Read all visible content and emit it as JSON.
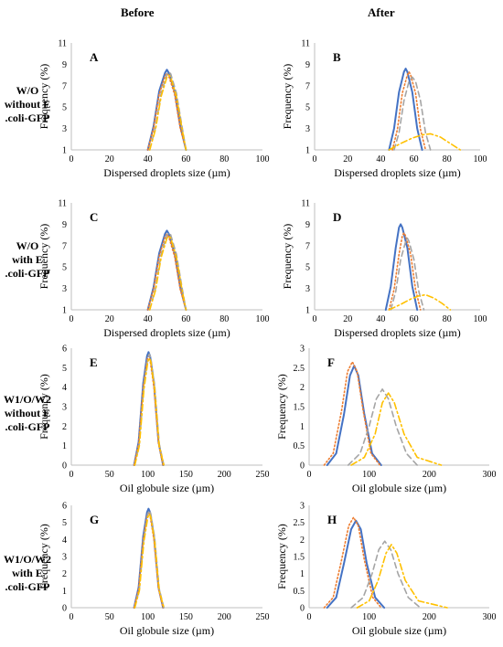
{
  "columns": {
    "before": "Before",
    "after": "After"
  },
  "rows": [
    {
      "l1": "W/O",
      "l2": "without E",
      "l3": ".coli-GFP"
    },
    {
      "l1": "W/O",
      "l2": "with E",
      "l3": ".coli-GFP"
    },
    {
      "l1": "W1/O/W2",
      "l2": "without E",
      "l3": ".coli-GFP"
    },
    {
      "l1": "W1/O/W2",
      "l2": "with E",
      "l3": ".coli-GFP"
    }
  ],
  "colors": {
    "solid": "#4472C4",
    "dotted": "#ED7D31",
    "dashed": "#A5A5A5",
    "dashdot": "#FFC000"
  },
  "chart_data": [
    {
      "panel": "A",
      "type": "line",
      "xlabel": "Dispersed droplets size (µm)",
      "ylabel": "Frequency (%)",
      "xlim": [
        0,
        100
      ],
      "ylim": [
        1,
        11
      ],
      "xticks": [
        0,
        20,
        40,
        60,
        80,
        100
      ],
      "yticks": [
        1,
        3,
        5,
        7,
        9,
        11
      ],
      "series": [
        {
          "style": "solid",
          "x": [
            40,
            43,
            46,
            49,
            50,
            51,
            54,
            57,
            60
          ],
          "y": [
            1,
            3.2,
            6.5,
            8.2,
            8.5,
            8.2,
            6.5,
            3.2,
            1
          ]
        },
        {
          "style": "dotted",
          "x": [
            40,
            43,
            46,
            49,
            50,
            51,
            54,
            57,
            60
          ],
          "y": [
            1,
            3.0,
            6.2,
            7.9,
            8.2,
            7.9,
            6.2,
            3.0,
            1
          ]
        },
        {
          "style": "dashed",
          "x": [
            41,
            44,
            47,
            50,
            51,
            52,
            55,
            58,
            60
          ],
          "y": [
            1,
            3.1,
            6.3,
            8.1,
            8.3,
            8.1,
            6.3,
            3.1,
            1
          ]
        },
        {
          "style": "dashdot",
          "x": [
            41,
            44,
            47,
            50,
            51,
            52,
            55,
            58,
            60
          ],
          "y": [
            1,
            2.9,
            6.0,
            7.8,
            8.0,
            7.8,
            6.0,
            2.9,
            1
          ]
        }
      ]
    },
    {
      "panel": "B",
      "type": "line",
      "xlabel": "Dispersed droplets size (µm)",
      "ylabel": "Frequency (%)",
      "xlim": [
        0,
        100
      ],
      "ylim": [
        1,
        11
      ],
      "xticks": [
        0,
        20,
        40,
        60,
        80,
        100
      ],
      "yticks": [
        1,
        3,
        5,
        7,
        9,
        11
      ],
      "series": [
        {
          "style": "solid",
          "x": [
            45,
            48,
            51,
            54,
            55,
            56,
            59,
            62,
            65
          ],
          "y": [
            1,
            3.0,
            6.4,
            8.3,
            8.6,
            8.3,
            6.4,
            3.0,
            1
          ]
        },
        {
          "style": "dotted",
          "x": [
            47,
            50,
            53,
            56,
            57,
            58,
            61,
            64,
            67
          ],
          "y": [
            1,
            2.9,
            6.3,
            8.0,
            8.3,
            8.0,
            6.3,
            2.9,
            1
          ]
        },
        {
          "style": "dashed",
          "x": [
            48,
            51,
            54,
            57,
            59,
            61,
            64,
            67,
            70
          ],
          "y": [
            1,
            2.6,
            5.6,
            7.4,
            7.8,
            7.4,
            5.6,
            2.6,
            1
          ]
        },
        {
          "style": "dashdot",
          "x": [
            45,
            52,
            59,
            65,
            70,
            76,
            82,
            88
          ],
          "y": [
            1,
            1.6,
            2.1,
            2.4,
            2.5,
            2.2,
            1.6,
            1
          ]
        }
      ]
    },
    {
      "panel": "C",
      "type": "line",
      "xlabel": "Dispersed droplets size (µm)",
      "ylabel": "Frequency (%)",
      "xlim": [
        0,
        100
      ],
      "ylim": [
        1,
        11
      ],
      "xticks": [
        0,
        20,
        40,
        60,
        80,
        100
      ],
      "yticks": [
        1,
        3,
        5,
        7,
        9,
        11
      ],
      "series": [
        {
          "style": "solid",
          "x": [
            40,
            43,
            46,
            49,
            50,
            51,
            54,
            57,
            60
          ],
          "y": [
            1,
            3.1,
            6.3,
            8.1,
            8.4,
            8.1,
            6.3,
            3.1,
            1
          ]
        },
        {
          "style": "dotted",
          "x": [
            40,
            43,
            46,
            49,
            50,
            51,
            54,
            57,
            60
          ],
          "y": [
            1,
            2.9,
            6.0,
            7.8,
            8.1,
            7.8,
            6.0,
            2.9,
            1
          ]
        },
        {
          "style": "dashed",
          "x": [
            41,
            44,
            47,
            50,
            51,
            52,
            55,
            58,
            60
          ],
          "y": [
            1,
            3.0,
            6.2,
            8.0,
            8.2,
            8.0,
            6.2,
            3.0,
            1
          ]
        },
        {
          "style": "dashdot",
          "x": [
            41,
            44,
            47,
            50,
            51,
            52,
            55,
            58,
            60
          ],
          "y": [
            1,
            2.8,
            5.9,
            7.7,
            7.9,
            7.7,
            5.9,
            2.8,
            1
          ]
        }
      ]
    },
    {
      "panel": "D",
      "type": "line",
      "xlabel": "Dispersed droplets size (µm)",
      "ylabel": "Frequency (%)",
      "xlim": [
        0,
        100
      ],
      "ylim": [
        1,
        11
      ],
      "xticks": [
        0,
        20,
        40,
        60,
        80,
        100
      ],
      "yticks": [
        1,
        3,
        5,
        7,
        9,
        11
      ],
      "series": [
        {
          "style": "solid",
          "x": [
            43,
            46,
            49,
            51,
            52,
            53,
            56,
            59,
            62
          ],
          "y": [
            1,
            3.2,
            6.8,
            8.7,
            9.0,
            8.7,
            6.8,
            3.2,
            1
          ]
        },
        {
          "style": "dotted",
          "x": [
            45,
            48,
            51,
            53,
            54,
            55,
            58,
            61,
            64
          ],
          "y": [
            1,
            2.9,
            6.2,
            7.9,
            8.2,
            7.9,
            6.2,
            2.9,
            1
          ]
        },
        {
          "style": "dashed",
          "x": [
            46,
            49,
            52,
            55,
            56,
            57,
            60,
            63,
            66
          ],
          "y": [
            1,
            2.7,
            5.7,
            7.4,
            7.7,
            7.4,
            5.7,
            2.7,
            1
          ]
        },
        {
          "style": "dashdot",
          "x": [
            45,
            52,
            58,
            63,
            67,
            72,
            77,
            82
          ],
          "y": [
            1,
            1.5,
            2.0,
            2.3,
            2.4,
            2.1,
            1.6,
            1
          ]
        }
      ]
    },
    {
      "panel": "E",
      "type": "line",
      "xlabel": "Oil globule size (µm)",
      "ylabel": "Frequency (%)",
      "xlim": [
        0,
        250
      ],
      "ylim": [
        0,
        6
      ],
      "xticks": [
        0,
        50,
        100,
        150,
        200,
        250
      ],
      "yticks": [
        0,
        1,
        2,
        3,
        4,
        5,
        6
      ],
      "series": [
        {
          "style": "solid",
          "x": [
            82,
            88,
            94,
            99,
            101,
            103,
            108,
            114,
            120
          ],
          "y": [
            0,
            1.2,
            4.2,
            5.6,
            5.8,
            5.6,
            4.2,
            1.2,
            0
          ]
        },
        {
          "style": "dotted",
          "x": [
            82,
            88,
            94,
            99,
            101,
            103,
            108,
            114,
            120
          ],
          "y": [
            0,
            1.1,
            4.0,
            5.4,
            5.6,
            5.4,
            4.0,
            1.1,
            0
          ]
        },
        {
          "style": "dashed",
          "x": [
            83,
            89,
            95,
            100,
            102,
            104,
            109,
            115,
            121
          ],
          "y": [
            0,
            1.1,
            4.1,
            5.5,
            5.7,
            5.5,
            4.1,
            1.1,
            0
          ]
        },
        {
          "style": "dashdot",
          "x": [
            83,
            89,
            95,
            100,
            102,
            104,
            109,
            115,
            121
          ],
          "y": [
            0,
            1.0,
            3.9,
            5.3,
            5.5,
            5.3,
            3.9,
            1.0,
            0
          ]
        }
      ]
    },
    {
      "panel": "F",
      "type": "line",
      "xlabel": "Oil globule size (µm)",
      "ylabel": "Frequency (%)",
      "xlim": [
        0,
        300
      ],
      "ylim": [
        0,
        3
      ],
      "xticks": [
        0,
        100,
        200,
        300
      ],
      "yticks": [
        0,
        0.5,
        1,
        1.5,
        2,
        2.5,
        3
      ],
      "series": [
        {
          "style": "solid",
          "x": [
            30,
            45,
            58,
            68,
            75,
            82,
            92,
            105,
            120
          ],
          "y": [
            0,
            0.3,
            1.3,
            2.3,
            2.55,
            2.3,
            1.3,
            0.3,
            0
          ]
        },
        {
          "style": "dotted",
          "x": [
            25,
            40,
            54,
            64,
            72,
            80,
            90,
            103,
            118
          ],
          "y": [
            0,
            0.3,
            1.4,
            2.4,
            2.65,
            2.4,
            1.4,
            0.3,
            0
          ]
        },
        {
          "style": "dashed",
          "x": [
            65,
            85,
            100,
            112,
            122,
            132,
            145,
            162,
            180
          ],
          "y": [
            0,
            0.3,
            1.0,
            1.7,
            1.95,
            1.7,
            1.0,
            0.3,
            0
          ]
        },
        {
          "style": "dashdot",
          "x": [
            70,
            92,
            110,
            122,
            132,
            142,
            158,
            180,
            220
          ],
          "y": [
            0,
            0.2,
            0.8,
            1.6,
            1.85,
            1.6,
            0.8,
            0.2,
            0
          ]
        }
      ]
    },
    {
      "panel": "G",
      "type": "line",
      "xlabel": "Oil globule size (µm)",
      "ylabel": "Frequency (%)",
      "xlim": [
        0,
        250
      ],
      "ylim": [
        0,
        6
      ],
      "xticks": [
        0,
        50,
        100,
        150,
        200,
        250
      ],
      "yticks": [
        0,
        1,
        2,
        3,
        4,
        5,
        6
      ],
      "series": [
        {
          "style": "solid",
          "x": [
            82,
            88,
            94,
            99,
            101,
            103,
            108,
            114,
            120
          ],
          "y": [
            0,
            1.2,
            4.2,
            5.6,
            5.8,
            5.6,
            4.2,
            1.2,
            0
          ]
        },
        {
          "style": "dotted",
          "x": [
            82,
            88,
            94,
            99,
            101,
            103,
            108,
            114,
            120
          ],
          "y": [
            0,
            1.1,
            4.0,
            5.4,
            5.6,
            5.4,
            4.0,
            1.1,
            0
          ]
        },
        {
          "style": "dashed",
          "x": [
            83,
            89,
            95,
            100,
            102,
            104,
            109,
            115,
            121
          ],
          "y": [
            0,
            1.1,
            4.1,
            5.5,
            5.7,
            5.5,
            4.1,
            1.1,
            0
          ]
        },
        {
          "style": "dashdot",
          "x": [
            83,
            89,
            95,
            100,
            102,
            104,
            109,
            115,
            121
          ],
          "y": [
            0,
            1.0,
            3.9,
            5.3,
            5.5,
            5.3,
            3.9,
            1.0,
            0
          ]
        }
      ]
    },
    {
      "panel": "H",
      "type": "line",
      "xlabel": "Oil globule size (µm)",
      "ylabel": "Frequency (%)",
      "xlim": [
        0,
        300
      ],
      "ylim": [
        0,
        3
      ],
      "xticks": [
        0,
        100,
        200,
        300
      ],
      "yticks": [
        0,
        0.5,
        1,
        1.5,
        2,
        2.5,
        3
      ],
      "series": [
        {
          "style": "solid",
          "x": [
            30,
            45,
            58,
            70,
            78,
            86,
            96,
            110,
            125
          ],
          "y": [
            0,
            0.3,
            1.3,
            2.3,
            2.55,
            2.3,
            1.3,
            0.3,
            0
          ]
        },
        {
          "style": "dotted",
          "x": [
            25,
            40,
            54,
            66,
            74,
            82,
            92,
            106,
            120
          ],
          "y": [
            0,
            0.3,
            1.4,
            2.4,
            2.65,
            2.4,
            1.4,
            0.3,
            0
          ]
        },
        {
          "style": "dashed",
          "x": [
            70,
            90,
            105,
            116,
            126,
            136,
            148,
            165,
            185
          ],
          "y": [
            0,
            0.3,
            1.0,
            1.7,
            1.95,
            1.7,
            1.0,
            0.3,
            0
          ]
        },
        {
          "style": "dashdot",
          "x": [
            80,
            100,
            115,
            128,
            137,
            146,
            160,
            182,
            230
          ],
          "y": [
            0,
            0.2,
            0.8,
            1.6,
            1.85,
            1.6,
            0.8,
            0.2,
            0
          ]
        }
      ]
    }
  ]
}
